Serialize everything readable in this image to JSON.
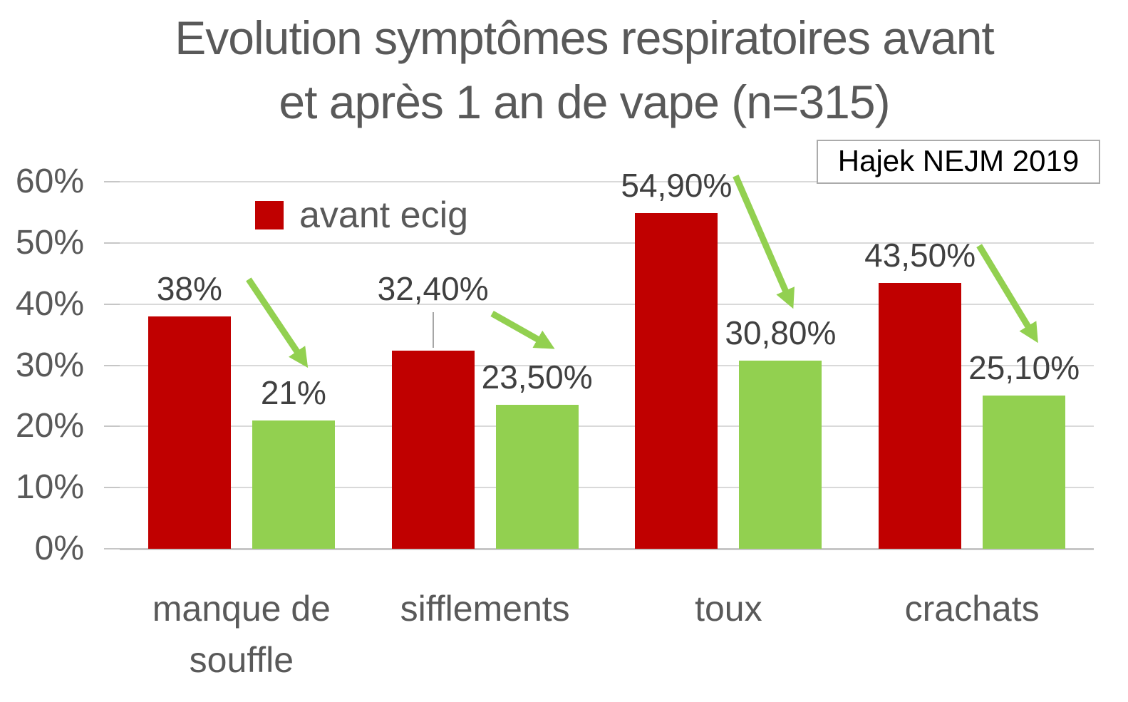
{
  "header": {
    "title_lines": [
      "Evolution symptômes respiratoires avant",
      "et après 1 an de vape (n=315)"
    ],
    "source_note": "Hajek NEJM 2019"
  },
  "legend": {
    "items": [
      {
        "label": "avant ecig",
        "color": "#c00000"
      }
    ]
  },
  "colors": {
    "red_bar": "#c00000",
    "green_bar": "#92d050",
    "arrow_green": "#92d050",
    "label_text": "#404040",
    "axis_text": "#595959",
    "gridline": "#d9d9d9",
    "axis_line": "#c6c6c6",
    "leader_line": "#a6a6a6"
  },
  "chart_data": {
    "type": "bar",
    "title": "Evolution symptômes respiratoires avant et après 1 an de vape (n=315)",
    "annotation": "Hajek NEJM 2019",
    "categories": [
      "manque de souffle",
      "sifflements",
      "toux",
      "crachats"
    ],
    "category_lines": [
      [
        "manque de",
        "souffle"
      ],
      [
        "sifflements"
      ],
      [
        "toux"
      ],
      [
        "crachats"
      ]
    ],
    "series": [
      {
        "key": "avant-ecig",
        "name": "avant ecig",
        "color": "#c00000",
        "values": [
          38,
          32.4,
          54.9,
          43.5
        ],
        "labels": [
          "38%",
          "32,40%",
          "54,90%",
          "43,50%"
        ],
        "label_raised": [
          false,
          true,
          false,
          false
        ]
      },
      {
        "key": "apres-vape",
        "name": "",
        "color": "#92d050",
        "values": [
          21,
          23.5,
          30.8,
          25.1
        ],
        "labels": [
          "21%",
          "23,50%",
          "30,80%",
          "25,10%"
        ],
        "label_raised": [
          false,
          false,
          false,
          false
        ]
      }
    ],
    "xlabel": "",
    "ylabel": "",
    "ylim": [
      0,
      60
    ],
    "yticks": [
      {
        "v": 0,
        "label": "0%"
      },
      {
        "v": 10,
        "label": "10%"
      },
      {
        "v": 20,
        "label": "20%"
      },
      {
        "v": 30,
        "label": "30%"
      },
      {
        "v": 40,
        "label": "40%"
      },
      {
        "v": 50,
        "label": "50%"
      },
      {
        "v": 60,
        "label": "60%"
      }
    ],
    "grid": true,
    "legend_position": "inside-top-left",
    "decrease_arrows": true
  }
}
